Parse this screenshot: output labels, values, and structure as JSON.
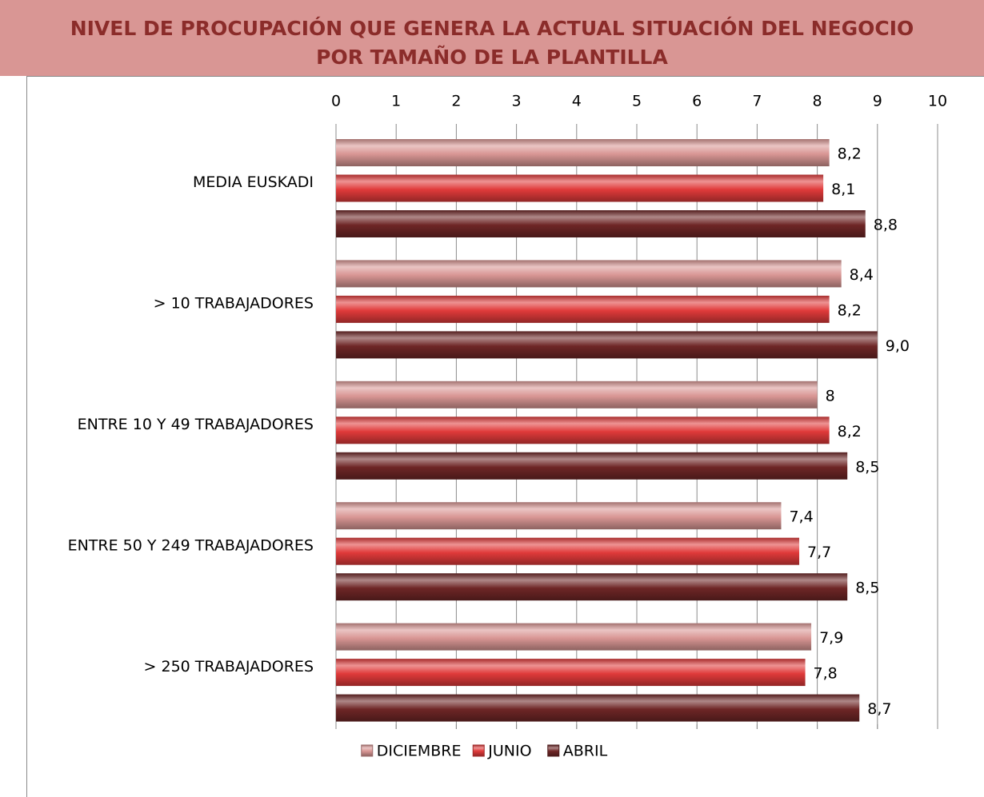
{
  "chart_data": {
    "type": "bar",
    "orientation": "horizontal",
    "title": [
      "NIVEL DE PROCUPACIÓN QUE GENERA LA ACTUAL SITUACIÓN DEL NEGOCIO",
      "POR TAMAÑO DE LA PLANTILLA"
    ],
    "categories": [
      "MEDIA EUSKADI",
      "> 10 TRABAJADORES",
      "ENTRE 10 Y 49 TRABAJADORES",
      "ENTRE 50 Y 249 TRABAJADORES",
      "> 250 TRABAJADORES"
    ],
    "series": [
      {
        "name": "DICIEMBRE",
        "color": "#d99694",
        "values": [
          8.2,
          8.4,
          8,
          7.4,
          7.9
        ],
        "value_labels": [
          "8,2",
          "8,4",
          "8",
          "7,4",
          "7,9"
        ]
      },
      {
        "name": "JUNIO",
        "color": "#e03a3a",
        "values": [
          8.1,
          8.2,
          8.2,
          7.7,
          7.8
        ],
        "value_labels": [
          "8,1",
          "8,2",
          "8,2",
          "7,7",
          "7,8"
        ]
      },
      {
        "name": "ABRIL",
        "color": "#6e2626",
        "values": [
          8.8,
          9.0,
          8.5,
          8.5,
          8.7
        ],
        "value_labels": [
          "8,8",
          "9,0",
          "8,5",
          "8,5",
          "8,7"
        ]
      }
    ],
    "xlim": [
      0,
      10
    ],
    "xticks": [
      0,
      1,
      2,
      3,
      4,
      5,
      6,
      7,
      8,
      9,
      10
    ],
    "xaxis_position": "top",
    "grid": true,
    "legend": "bottom"
  }
}
